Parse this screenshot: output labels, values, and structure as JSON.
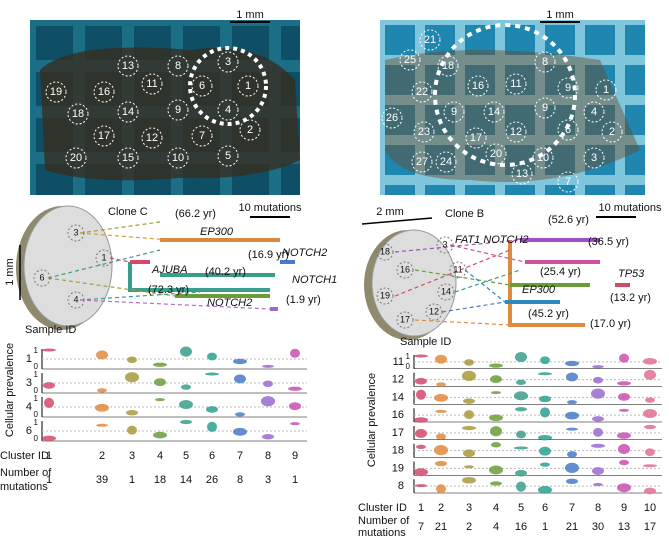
{
  "photos": [
    {
      "scale": "1 mm",
      "labels": [
        "3",
        "8",
        "13",
        "19",
        "16",
        "11",
        "6",
        "1",
        "18",
        "14",
        "9",
        "4",
        "17",
        "12",
        "7",
        "2",
        "20",
        "15",
        "10",
        "5"
      ]
    },
    {
      "scale": "1 mm",
      "labels": [
        "21",
        "25",
        "18",
        "8",
        "22",
        "16",
        "11",
        "9",
        "1",
        "26",
        "9",
        "14",
        "9",
        "4",
        "23",
        "17",
        "12",
        "6",
        "2",
        "20",
        "10",
        "3",
        "27",
        "24",
        "13",
        "7"
      ]
    }
  ],
  "trees": [
    {
      "clone": "Clone C",
      "scale_bar": "10 mutations",
      "disk_scale": "1 mm",
      "samples": [
        "3",
        "1",
        "6",
        "4"
      ],
      "annotations": [
        "(66.2 yr)",
        "EP300",
        "(16.9 yr)",
        "NOTCH2",
        "AJUBA",
        "(40.2 yr)",
        "NOTCH1",
        "(72.3 yr)",
        "NOTCH2",
        "(1.9 yr)"
      ]
    },
    {
      "clone": "Clone B",
      "scale_bar": "10 mutations",
      "disk_scale": "2 mm",
      "samples": [
        "18",
        "16",
        "11",
        "3",
        "19",
        "14",
        "17",
        "12"
      ],
      "annotations": [
        "(52.6 yr)",
        "FAT1 NOTCH2",
        "(36.5 yr)",
        "(25.4 yr)",
        "TP53",
        "EP300",
        "(13.2 yr)",
        "(45.2 yr)",
        "(17.0 yr)"
      ]
    }
  ],
  "violins": [
    {
      "sample_header": "Sample ID",
      "y_label": "Cellular prevalence",
      "axis_ticks": [
        "1",
        "0"
      ],
      "samples": [
        "1",
        "3",
        "4",
        "6"
      ],
      "cluster_header": "Cluster ID",
      "clusters": [
        1,
        2,
        3,
        4,
        5,
        6,
        7,
        8,
        9
      ],
      "mutations_header": [
        "Number of",
        "mutations"
      ],
      "mutations": [
        1,
        39,
        1,
        18,
        14,
        26,
        8,
        3,
        1
      ]
    },
    {
      "sample_header": "Sample ID",
      "y_label": "Cellular prevalence",
      "axis_ticks": [
        "1",
        "0"
      ],
      "samples": [
        "11",
        "12",
        "14",
        "16",
        "17",
        "18",
        "19",
        "8"
      ],
      "cluster_header": "Cluster ID",
      "clusters": [
        1,
        2,
        3,
        4,
        5,
        6,
        7,
        8,
        9,
        10
      ],
      "mutations_header": [
        "Number of",
        "mutations"
      ],
      "mutations": [
        7,
        21,
        2,
        4,
        16,
        1,
        21,
        30,
        13,
        17
      ]
    }
  ]
}
